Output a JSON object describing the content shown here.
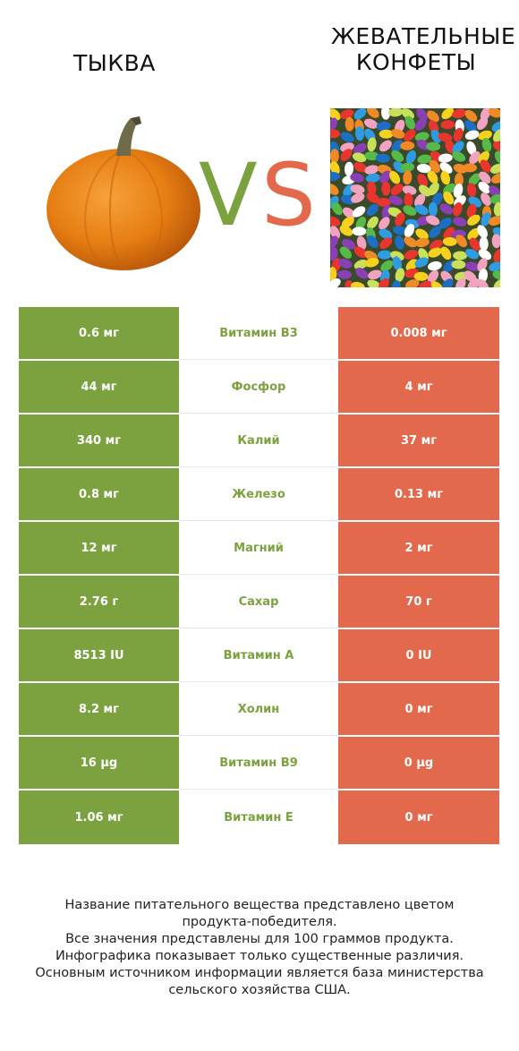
{
  "left_food": {
    "name": "ТЫКВА",
    "color": "#7ba23f"
  },
  "right_food": {
    "name_line1": "ЖЕВАТЕЛЬНЫЕ",
    "name_line2": "КОНФЕТЫ",
    "color": "#e2694c"
  },
  "vs": {
    "v": "V",
    "s": "S",
    "v_color": "#7ba23f",
    "s_color": "#e2694c"
  },
  "rows": [
    {
      "nutrient": "Витамин B3",
      "left": "0.6 мг",
      "right": "0.008 мг",
      "winner": "left"
    },
    {
      "nutrient": "Фосфор",
      "left": "44 мг",
      "right": "4 мг",
      "winner": "left"
    },
    {
      "nutrient": "Калий",
      "left": "340 мг",
      "right": "37 мг",
      "winner": "left"
    },
    {
      "nutrient": "Железо",
      "left": "0.8 мг",
      "right": "0.13 мг",
      "winner": "left"
    },
    {
      "nutrient": "Магний",
      "left": "12 мг",
      "right": "2 мг",
      "winner": "left"
    },
    {
      "nutrient": "Сахар",
      "left": "2.76 г",
      "right": "70 г",
      "winner": "left"
    },
    {
      "nutrient": "Витамин A",
      "left": "8513 IU",
      "right": "0 IU",
      "winner": "left"
    },
    {
      "nutrient": "Холин",
      "left": "8.2 мг",
      "right": "0 мг",
      "winner": "left"
    },
    {
      "nutrient": "Витамин B9",
      "left": "16 µg",
      "right": "0 µg",
      "winner": "left"
    },
    {
      "nutrient": "Витамин E",
      "left": "1.06 мг",
      "right": "0 мг",
      "winner": "left"
    }
  ],
  "chart_data": {
    "type": "table",
    "columns": [
      "ТЫКВА",
      "",
      "ЖЕВАТЕЛЬНЫЕ КОНФЕТЫ"
    ],
    "rows": [
      [
        "0.6 мг",
        "Витамин B3",
        "0.008 мг"
      ],
      [
        "44 мг",
        "Фосфор",
        "4 мг"
      ],
      [
        "340 мг",
        "Калий",
        "37 мг"
      ],
      [
        "0.8 мг",
        "Железо",
        "0.13 мг"
      ],
      [
        "12 мг",
        "Магний",
        "2 мг"
      ],
      [
        "2.76 г",
        "Сахар",
        "70 г"
      ],
      [
        "8513 IU",
        "Витамин A",
        "0 IU"
      ],
      [
        "8.2 мг",
        "Холин",
        "0 мг"
      ],
      [
        "16 µg",
        "Витамин B9",
        "0 µg"
      ],
      [
        "1.06 мг",
        "Витамин E",
        "0 мг"
      ]
    ]
  },
  "footnote": [
    "Название питательного вещества представлено цветом",
    "продукта-победителя.",
    "Все значения представлены для 100 граммов продукта.",
    "Инфографика показывает только существенные различия.",
    "Основным источником информации является база министерства",
    "сельского хозяйства США."
  ]
}
